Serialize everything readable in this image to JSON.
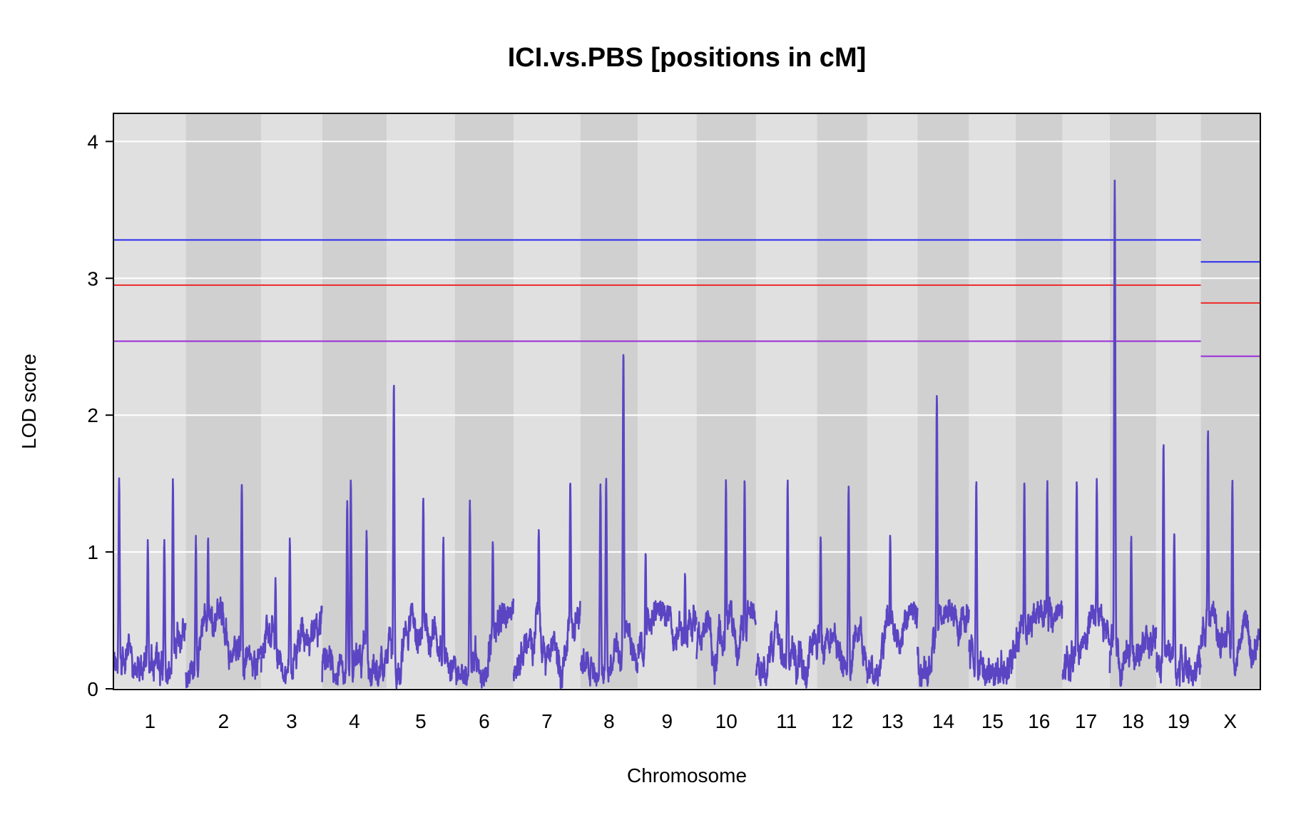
{
  "chart_data": {
    "type": "line",
    "title": "ICI.vs.PBS [positions in cM]",
    "xlabel": "Chromosome",
    "ylabel": "LOD score",
    "ylim": [
      0,
      4.2
    ],
    "y_ticks": [
      0,
      1,
      2,
      3,
      4
    ],
    "grid": true,
    "legend": "none",
    "colors": {
      "panel_light": "#e0e0e0",
      "panel_dark": "#d0d0d0",
      "grid": "#ffffff",
      "trace": "#5b45c3",
      "threshold_high": "#2a2aee",
      "threshold_mid": "#ee2a2a",
      "threshold_low": "#9a2ad8"
    },
    "chromosomes": [
      {
        "label": "1",
        "start": 0,
        "end": 100
      },
      {
        "label": "2",
        "start": 100,
        "end": 205
      },
      {
        "label": "3",
        "start": 205,
        "end": 290
      },
      {
        "label": "4",
        "start": 290,
        "end": 380
      },
      {
        "label": "5",
        "start": 380,
        "end": 475
      },
      {
        "label": "6",
        "start": 475,
        "end": 557
      },
      {
        "label": "7",
        "start": 557,
        "end": 650
      },
      {
        "label": "8",
        "start": 650,
        "end": 730
      },
      {
        "label": "9",
        "start": 730,
        "end": 812
      },
      {
        "label": "10",
        "start": 812,
        "end": 895
      },
      {
        "label": "11",
        "start": 895,
        "end": 980
      },
      {
        "label": "12",
        "start": 980,
        "end": 1050
      },
      {
        "label": "13",
        "start": 1050,
        "end": 1120
      },
      {
        "label": "14",
        "start": 1120,
        "end": 1192
      },
      {
        "label": "15",
        "start": 1192,
        "end": 1257
      },
      {
        "label": "16",
        "start": 1257,
        "end": 1322
      },
      {
        "label": "17",
        "start": 1322,
        "end": 1388
      },
      {
        "label": "18",
        "start": 1388,
        "end": 1453
      },
      {
        "label": "19",
        "start": 1453,
        "end": 1515
      },
      {
        "label": "X",
        "start": 1515,
        "end": 1597
      }
    ],
    "thresholds": {
      "autosome": [
        3.28,
        2.95,
        2.54
      ],
      "x": [
        3.12,
        2.82,
        2.43
      ]
    },
    "peaks": [
      {
        "chr": "1",
        "pos": 7,
        "lod": 1.51
      },
      {
        "chr": "1",
        "pos": 47,
        "lod": 1.05
      },
      {
        "chr": "1",
        "pos": 70,
        "lod": 1.07
      },
      {
        "chr": "1",
        "pos": 82,
        "lod": 1.5
      },
      {
        "chr": "2",
        "pos": 14,
        "lod": 1.07
      },
      {
        "chr": "2",
        "pos": 31,
        "lod": 1.09
      },
      {
        "chr": "2",
        "pos": 78,
        "lod": 1.49
      },
      {
        "chr": "3",
        "pos": 20,
        "lod": 0.78
      },
      {
        "chr": "3",
        "pos": 40,
        "lod": 1.07
      },
      {
        "chr": "4",
        "pos": 35,
        "lod": 1.35
      },
      {
        "chr": "4",
        "pos": 40,
        "lod": 1.5
      },
      {
        "chr": "4",
        "pos": 62,
        "lod": 1.12
      },
      {
        "chr": "5",
        "pos": 10,
        "lod": 2.2
      },
      {
        "chr": "5",
        "pos": 51,
        "lod": 1.38
      },
      {
        "chr": "5",
        "pos": 79,
        "lod": 1.07
      },
      {
        "chr": "6",
        "pos": 21,
        "lod": 1.34
      },
      {
        "chr": "6",
        "pos": 53,
        "lod": 1.05
      },
      {
        "chr": "7",
        "pos": 35,
        "lod": 1.14
      },
      {
        "chr": "7",
        "pos": 79,
        "lod": 1.5
      },
      {
        "chr": "8",
        "pos": 28,
        "lod": 1.45
      },
      {
        "chr": "8",
        "pos": 36,
        "lod": 1.51
      },
      {
        "chr": "8",
        "pos": 60,
        "lod": 2.44
      },
      {
        "chr": "9",
        "pos": 11,
        "lod": 0.96
      },
      {
        "chr": "9",
        "pos": 66,
        "lod": 0.81
      },
      {
        "chr": "10",
        "pos": 41,
        "lod": 1.5
      },
      {
        "chr": "10",
        "pos": 67,
        "lod": 1.51
      },
      {
        "chr": "11",
        "pos": 44,
        "lod": 1.5
      },
      {
        "chr": "12",
        "pos": 5,
        "lod": 1.09
      },
      {
        "chr": "12",
        "pos": 44,
        "lod": 1.45
      },
      {
        "chr": "13",
        "pos": 32,
        "lod": 1.1
      },
      {
        "chr": "14",
        "pos": 27,
        "lod": 2.13
      },
      {
        "chr": "15",
        "pos": 10,
        "lod": 1.49
      },
      {
        "chr": "16",
        "pos": 12,
        "lod": 1.5
      },
      {
        "chr": "16",
        "pos": 44,
        "lod": 1.48
      },
      {
        "chr": "17",
        "pos": 20,
        "lod": 1.5
      },
      {
        "chr": "17",
        "pos": 48,
        "lod": 1.5
      },
      {
        "chr": "18",
        "pos": 7,
        "lod": 3.7
      },
      {
        "chr": "18",
        "pos": 30,
        "lod": 1.07
      },
      {
        "chr": "19",
        "pos": 10,
        "lod": 1.76
      },
      {
        "chr": "19",
        "pos": 25,
        "lod": 1.13
      },
      {
        "chr": "X",
        "pos": 10,
        "lod": 1.86
      },
      {
        "chr": "X",
        "pos": 44,
        "lod": 1.5
      }
    ]
  }
}
